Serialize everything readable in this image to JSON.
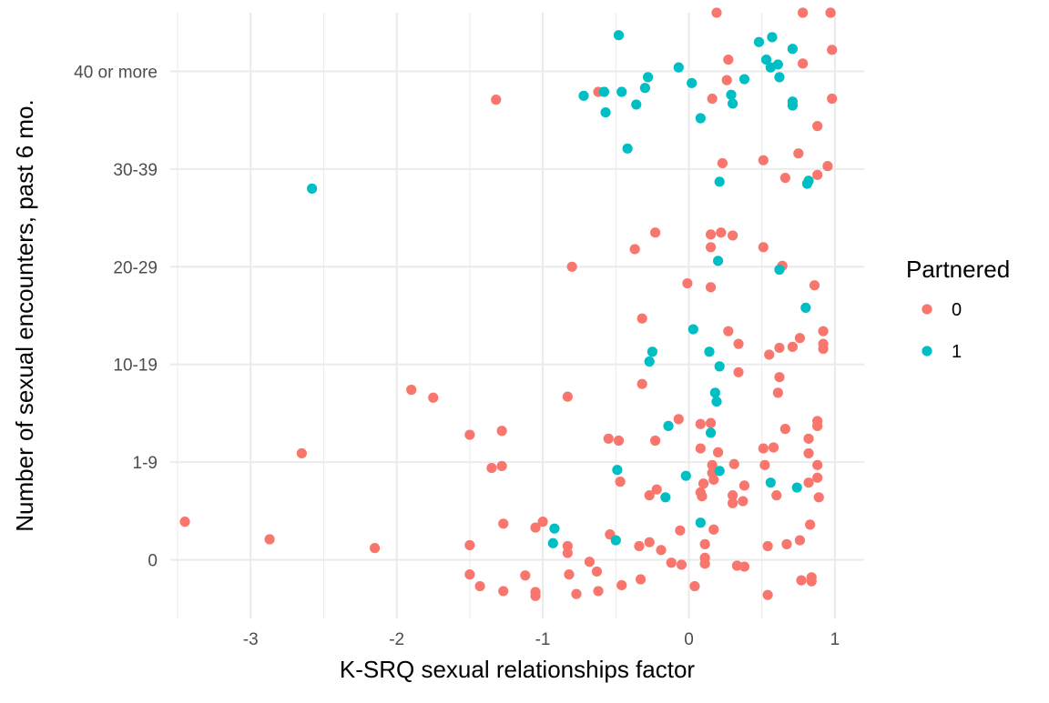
{
  "chart_data": {
    "type": "scatter",
    "title": "",
    "xlabel": "K-SRQ sexual relationships factor",
    "ylabel": "Number of sexual encounters, past 6 mo.",
    "xlim": [
      -3.55,
      1.2
    ],
    "ylim": [
      -0.6,
      5.6
    ],
    "x_ticks": [
      -3,
      -2,
      -1,
      0,
      1
    ],
    "x_tick_labels": [
      "-3",
      "-2",
      "-1",
      "0",
      "1"
    ],
    "y_tick_positions": [
      0,
      1,
      2,
      3,
      4,
      5
    ],
    "y_categories": [
      "0",
      "1-9",
      "10-19",
      "20-29",
      "30-39",
      "40 or more"
    ],
    "grid": true,
    "legend": {
      "title": "Partnered",
      "position": "right",
      "entries": [
        {
          "label": "0",
          "color": "#F8766D"
        },
        {
          "label": "1",
          "color": "#00BFC4"
        }
      ]
    },
    "series": [
      {
        "name": "0",
        "color": "#F8766D",
        "points": [
          [
            -3.45,
            0.39
          ],
          [
            -2.87,
            0.21
          ],
          [
            -2.65,
            1.09
          ],
          [
            -2.15,
            0.12
          ],
          [
            -1.9,
            1.74
          ],
          [
            -1.75,
            1.66
          ],
          [
            -1.5,
            1.28
          ],
          [
            -1.5,
            0.15
          ],
          [
            -1.5,
            -0.15
          ],
          [
            -1.43,
            -0.27
          ],
          [
            -1.35,
            0.94
          ],
          [
            -1.32,
            4.71
          ],
          [
            -1.28,
            1.32
          ],
          [
            -1.28,
            0.96
          ],
          [
            -1.27,
            0.37
          ],
          [
            -1.27,
            -0.32
          ],
          [
            -1.12,
            -0.16
          ],
          [
            -1.05,
            0.33
          ],
          [
            -1.05,
            -0.33
          ],
          [
            -1.05,
            -0.37
          ],
          [
            -1.0,
            0.39
          ],
          [
            -0.83,
            1.67
          ],
          [
            -0.83,
            0.14
          ],
          [
            -0.83,
            0.07
          ],
          [
            -0.82,
            -0.15
          ],
          [
            -0.8,
            3.0
          ],
          [
            -0.77,
            -0.35
          ],
          [
            -0.68,
            -0.02
          ],
          [
            -0.63,
            -0.12
          ],
          [
            -0.62,
            -0.32
          ],
          [
            -0.62,
            4.79
          ],
          [
            -0.55,
            1.24
          ],
          [
            -0.54,
            0.26
          ],
          [
            -0.48,
            1.22
          ],
          [
            -0.47,
            0.8
          ],
          [
            -0.46,
            -0.26
          ],
          [
            -0.37,
            3.18
          ],
          [
            -0.34,
            0.14
          ],
          [
            -0.33,
            -0.2
          ],
          [
            -0.32,
            1.8
          ],
          [
            -0.32,
            2.47
          ],
          [
            -0.27,
            0.66
          ],
          [
            -0.27,
            0.18
          ],
          [
            -0.23,
            3.35
          ],
          [
            -0.23,
            1.22
          ],
          [
            -0.22,
            0.72
          ],
          [
            -0.19,
            0.1
          ],
          [
            -0.12,
            -0.03
          ],
          [
            -0.07,
            1.44
          ],
          [
            -0.06,
            0.3
          ],
          [
            -0.05,
            -0.05
          ],
          [
            -0.01,
            2.83
          ],
          [
            0.04,
            -0.27
          ],
          [
            0.08,
            1.14
          ],
          [
            0.08,
            1.39
          ],
          [
            0.08,
            0.69
          ],
          [
            0.09,
            0.65
          ],
          [
            0.1,
            0.78
          ],
          [
            0.11,
            0.16
          ],
          [
            0.11,
            0.02
          ],
          [
            0.11,
            -0.04
          ],
          [
            0.15,
            3.33
          ],
          [
            0.15,
            3.2
          ],
          [
            0.15,
            2.79
          ],
          [
            0.15,
            1.4
          ],
          [
            0.16,
            4.72
          ],
          [
            0.16,
            0.97
          ],
          [
            0.16,
            0.89
          ],
          [
            0.17,
            0.82
          ],
          [
            0.17,
            0.31
          ],
          [
            0.19,
            5.95
          ],
          [
            0.2,
            1.1
          ],
          [
            0.22,
            3.35
          ],
          [
            0.23,
            4.06
          ],
          [
            0.26,
            4.91
          ],
          [
            0.27,
            5.12
          ],
          [
            0.27,
            2.34
          ],
          [
            0.3,
            3.32
          ],
          [
            0.3,
            0.66
          ],
          [
            0.3,
            0.58
          ],
          [
            0.31,
            0.98
          ],
          [
            0.33,
            -0.06
          ],
          [
            0.34,
            2.21
          ],
          [
            0.34,
            1.92
          ],
          [
            0.37,
            0.6
          ],
          [
            0.38,
            0.76
          ],
          [
            0.38,
            -0.07
          ],
          [
            0.51,
            1.14
          ],
          [
            0.51,
            3.2
          ],
          [
            0.51,
            4.09
          ],
          [
            0.52,
            0.97
          ],
          [
            0.54,
            0.14
          ],
          [
            0.54,
            -0.36
          ],
          [
            0.55,
            2.1
          ],
          [
            0.58,
            1.15
          ],
          [
            0.6,
            0.66
          ],
          [
            0.61,
            1.71
          ],
          [
            0.62,
            1.87
          ],
          [
            0.62,
            2.17
          ],
          [
            0.64,
            3.01
          ],
          [
            0.66,
            3.91
          ],
          [
            0.66,
            1.34
          ],
          [
            0.67,
            0.16
          ],
          [
            0.71,
            2.18
          ],
          [
            0.75,
            4.16
          ],
          [
            0.76,
            2.27
          ],
          [
            0.76,
            0.2
          ],
          [
            0.77,
            -0.21
          ],
          [
            0.78,
            5.95
          ],
          [
            0.78,
            5.08
          ],
          [
            0.82,
            1.24
          ],
          [
            0.82,
            0.79
          ],
          [
            0.82,
            1.09
          ],
          [
            0.83,
            0.36
          ],
          [
            0.84,
            -0.18
          ],
          [
            0.84,
            -0.22
          ],
          [
            0.86,
            2.81
          ],
          [
            0.88,
            4.44
          ],
          [
            0.88,
            3.94
          ],
          [
            0.88,
            1.37
          ],
          [
            0.88,
            1.42
          ],
          [
            0.88,
            0.97
          ],
          [
            0.88,
            0.84
          ],
          [
            0.89,
            0.64
          ],
          [
            0.92,
            2.34
          ],
          [
            0.92,
            2.21
          ],
          [
            0.92,
            2.16
          ],
          [
            0.95,
            4.03
          ],
          [
            0.97,
            5.93
          ],
          [
            0.97,
            5.87
          ],
          [
            0.98,
            4.72
          ],
          [
            0.98,
            5.22
          ]
        ]
      },
      {
        "name": "1",
        "color": "#00BFC4",
        "points": [
          [
            -2.58,
            3.8
          ],
          [
            -0.92,
            0.32
          ],
          [
            -0.93,
            0.17
          ],
          [
            -0.72,
            4.75
          ],
          [
            -0.58,
            4.79
          ],
          [
            -0.57,
            4.58
          ],
          [
            -0.5,
            0.2
          ],
          [
            -0.49,
            0.92
          ],
          [
            -0.48,
            5.37
          ],
          [
            -0.46,
            4.79
          ],
          [
            -0.42,
            4.21
          ],
          [
            -0.36,
            4.66
          ],
          [
            -0.3,
            4.83
          ],
          [
            -0.28,
            4.94
          ],
          [
            -0.27,
            2.03
          ],
          [
            -0.25,
            2.13
          ],
          [
            -0.16,
            0.64
          ],
          [
            -0.14,
            1.37
          ],
          [
            -0.07,
            5.04
          ],
          [
            -0.02,
            0.86
          ],
          [
            0.02,
            4.88
          ],
          [
            0.03,
            2.36
          ],
          [
            0.08,
            4.52
          ],
          [
            0.08,
            0.38
          ],
          [
            0.14,
            2.13
          ],
          [
            0.15,
            1.3
          ],
          [
            0.18,
            1.71
          ],
          [
            0.19,
            1.62
          ],
          [
            0.2,
            3.06
          ],
          [
            0.21,
            3.87
          ],
          [
            0.21,
            0.91
          ],
          [
            0.21,
            1.98
          ],
          [
            0.29,
            4.76
          ],
          [
            0.3,
            4.67
          ],
          [
            0.38,
            4.92
          ],
          [
            0.48,
            5.3
          ],
          [
            0.53,
            5.12
          ],
          [
            0.56,
            5.04
          ],
          [
            0.56,
            0.79
          ],
          [
            0.57,
            5.35
          ],
          [
            0.61,
            5.07
          ],
          [
            0.62,
            4.94
          ],
          [
            0.62,
            2.97
          ],
          [
            0.71,
            4.65
          ],
          [
            0.71,
            4.69
          ],
          [
            0.71,
            5.23
          ],
          [
            0.74,
            0.74
          ],
          [
            0.8,
            2.58
          ],
          [
            0.81,
            3.85
          ],
          [
            0.82,
            3.88
          ]
        ]
      }
    ]
  }
}
